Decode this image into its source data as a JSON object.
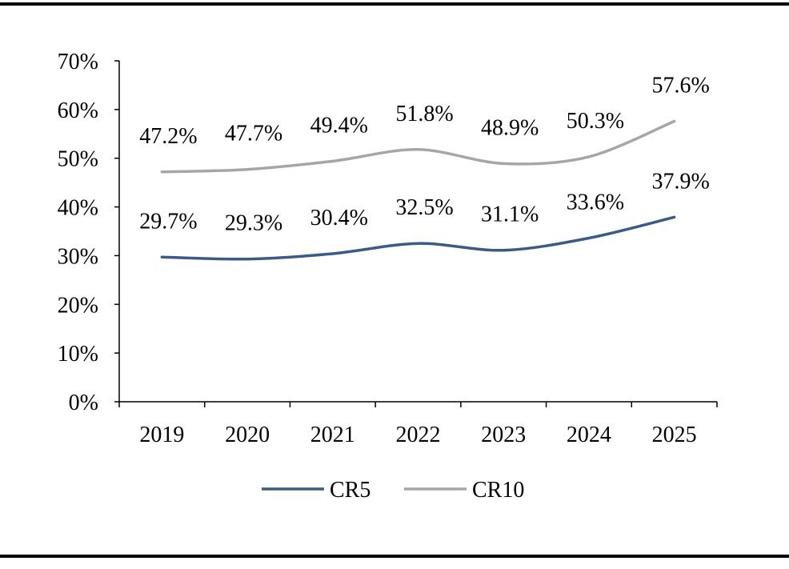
{
  "chart_data": {
    "type": "line",
    "categories": [
      "2019",
      "2020",
      "2021",
      "2022",
      "2023",
      "2024",
      "2025"
    ],
    "series": [
      {
        "name": "CR5",
        "values": [
          29.7,
          29.3,
          30.4,
          32.5,
          31.1,
          33.6,
          37.9
        ],
        "labels": [
          "29.7%",
          "29.3%",
          "30.4%",
          "32.5%",
          "31.1%",
          "33.6%",
          "37.9%"
        ],
        "color": "#3a5a8c"
      },
      {
        "name": "CR10",
        "values": [
          47.2,
          47.7,
          49.4,
          51.8,
          48.9,
          50.3,
          57.6
        ],
        "labels": [
          "47.2%",
          "47.7%",
          "49.4%",
          "51.8%",
          "48.9%",
          "50.3%",
          "57.6%"
        ],
        "color": "#a6a6a6"
      }
    ],
    "y_ticks": [
      0,
      10,
      20,
      30,
      40,
      50,
      60,
      70
    ],
    "y_tick_labels": [
      "0%",
      "10%",
      "20%",
      "30%",
      "40%",
      "50%",
      "60%",
      "70%"
    ],
    "ylim": [
      0,
      70
    ],
    "grid": false,
    "legend_position": "bottom"
  }
}
